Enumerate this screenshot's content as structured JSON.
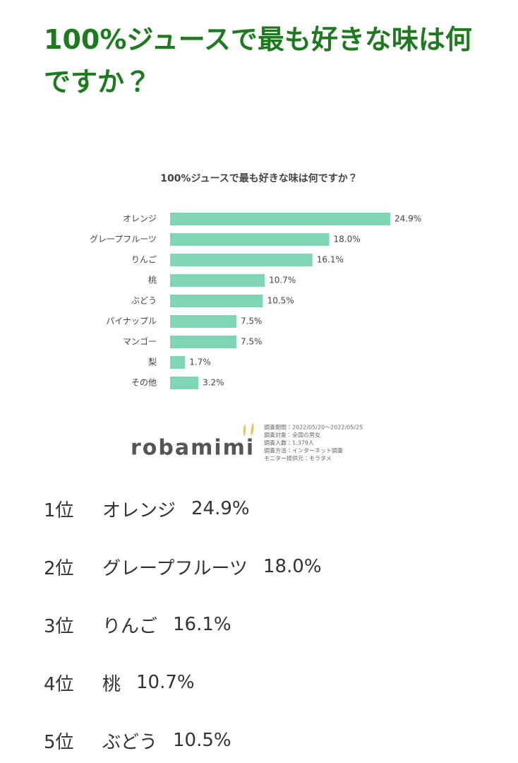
{
  "title": "100%ジュースで最も好きな味は何ですか？",
  "chart_data": {
    "type": "bar",
    "orientation": "horizontal",
    "title": "100%ジュースで最も好きな味は何ですか？",
    "categories": [
      "オレンジ",
      "グレープフルーツ",
      "りんご",
      "桃",
      "ぶどう",
      "パイナップル",
      "マンゴー",
      "梨",
      "その他"
    ],
    "values": [
      24.9,
      18.0,
      16.1,
      10.7,
      10.5,
      7.5,
      7.5,
      1.7,
      3.2
    ],
    "value_labels": [
      "24.9%",
      "18.0%",
      "16.1%",
      "10.7%",
      "10.5%",
      "7.5%",
      "7.5%",
      "1.7%",
      "3.2%"
    ],
    "color": "#7fd6b5"
  },
  "brand": "robamimi",
  "survey_notes": [
    "調査期間：2022/05/20～2022/05/25",
    "調査対象：全国の男女",
    "調査人数：1,379人",
    "調査方法：インターネット調査",
    "モニター提供元：モラタメ"
  ],
  "ranking": [
    {
      "rank": "1位",
      "name": "オレンジ",
      "share": "24.9%"
    },
    {
      "rank": "2位",
      "name": "グレープフルーツ",
      "share": "18.0%"
    },
    {
      "rank": "3位",
      "name": "りんご",
      "share": "16.1%"
    },
    {
      "rank": "4位",
      "name": "桃",
      "share": "10.7%"
    },
    {
      "rank": "5位",
      "name": "ぶどう",
      "share": "10.5%"
    }
  ]
}
